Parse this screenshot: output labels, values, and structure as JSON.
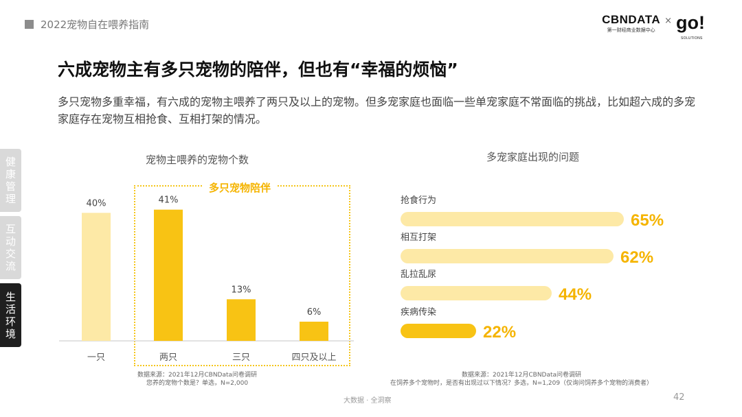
{
  "header": {
    "report_title": "2022宠物自在喂养指南"
  },
  "logo": {
    "cbn_main": "CBNDATA",
    "cbn_sub": "第一财经商业数据中心",
    "times": "×",
    "go": "go!",
    "go_sub": "SOLUTIONS"
  },
  "title": "六成宠物主有多只宠物的陪伴，但也有“幸福的烦恼”",
  "description": "多只宠物多重幸福，有六成的宠物主喂养了两只及以上的宠物。但多宠家庭也面临一些单宠家庭不常面临的挑战，比如超六成的多宠家庭存在宠物互相抢食、互相打架的情况。",
  "sidebar": [
    {
      "label": "健康管理"
    },
    {
      "label": "互动交流"
    },
    {
      "label": "生活环境"
    }
  ],
  "chart_data": [
    {
      "type": "bar",
      "title": "宠物主喂养的宠物个数",
      "categories": [
        "一只",
        "两只",
        "三只",
        "四只及以上"
      ],
      "values": [
        40,
        41,
        13,
        6
      ],
      "value_labels": [
        "40%",
        "41%",
        "13%",
        "6%"
      ],
      "unit": "%",
      "ylim": [
        0,
        45
      ],
      "grid": false,
      "highlight": {
        "label": "多只宠物陪伴",
        "categories": [
          "两只",
          "三只",
          "四只及以上"
        ]
      },
      "colors": {
        "light": "#fde9a6",
        "dark": "#f8c314"
      },
      "source": "数据来源：2021年12月CBNData问卷调研",
      "note": "您养的宠物个数是？单选，N=2,000"
    },
    {
      "type": "bar",
      "orientation": "horizontal",
      "title": "多宠家庭出现的问题",
      "categories": [
        "抢食行为",
        "相互打架",
        "乱拉乱尿",
        "疾病传染"
      ],
      "values": [
        65,
        62,
        44,
        22
      ],
      "value_labels": [
        "65%",
        "62%",
        "44%",
        "22%"
      ],
      "unit": "%",
      "xlim": [
        0,
        65
      ],
      "grid": false,
      "colors": {
        "light": "#fde9a6",
        "dark": "#f8c314",
        "label": "#f5b400"
      },
      "source": "数据来源：2021年12月CBNData问卷调研",
      "note": "在饲养多个宠物时，是否有出现过以下情况？多选，N=1,209（仅询问饲养多个宠物的消费者）"
    }
  ],
  "footer": {
    "text": "大数据 · 全洞察",
    "page": "42"
  }
}
